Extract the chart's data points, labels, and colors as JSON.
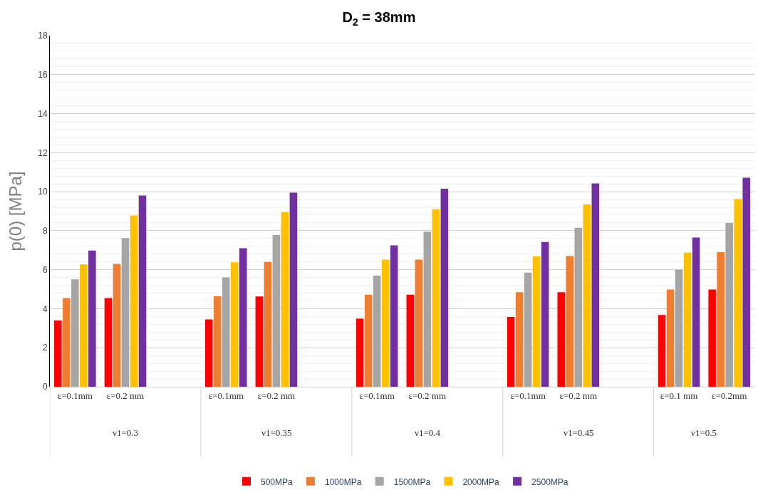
{
  "chart_data": {
    "type": "bar",
    "title": "D$_{2}$ = 38mm",
    "ylabel": "p(0) [MPa]",
    "categories": [
      "ε=0.1mm",
      "ε=0.2 mm",
      null,
      "ε=0.1mm",
      "ε=0.2 mm",
      null,
      "ε=0.1mm",
      "ε=0.2 mm",
      null,
      "ε=0.1mm",
      "ε=0.2 mm",
      null,
      "ε=0.1 mm",
      "ε=0.2mm"
    ],
    "series": [
      {
        "name": "500MPa",
        "color": "#ff0000",
        "values": [
          3.4,
          4.55,
          null,
          3.45,
          4.63,
          null,
          3.5,
          4.72,
          null,
          3.58,
          4.85,
          null,
          3.68,
          4.98
        ]
      },
      {
        "name": "1000MPa",
        "color": "#ed7d31",
        "values": [
          4.55,
          6.3,
          null,
          4.65,
          6.4,
          null,
          4.72,
          6.52,
          null,
          4.85,
          6.7,
          null,
          4.98,
          6.9
        ]
      },
      {
        "name": "1500MPa",
        "color": "#a5a5a5",
        "values": [
          5.5,
          7.62,
          null,
          5.6,
          7.78,
          null,
          5.7,
          7.95,
          null,
          5.85,
          8.15,
          null,
          6.0,
          8.4
        ]
      },
      {
        "name": "2000MPa",
        "color": "#ffc000",
        "values": [
          6.28,
          8.78,
          null,
          6.38,
          8.95,
          null,
          6.52,
          9.1,
          null,
          6.68,
          9.35,
          null,
          6.88,
          9.62
        ]
      },
      {
        "name": "2500MPa",
        "color": "#7030a0",
        "values": [
          6.98,
          9.8,
          null,
          7.1,
          9.95,
          null,
          7.25,
          10.15,
          null,
          7.42,
          10.42,
          null,
          7.65,
          10.72
        ]
      }
    ],
    "annotations": [
      "ν1=0.3",
      "ν1=0.35",
      "ν1=0.4",
      "ν1=0.45",
      "ν1=0.5"
    ],
    "ylim": [
      0,
      18
    ],
    "yticks": [
      0,
      2,
      4,
      6,
      8,
      10,
      12,
      14,
      16,
      18
    ],
    "grid": "y",
    "legend": "bottom"
  }
}
